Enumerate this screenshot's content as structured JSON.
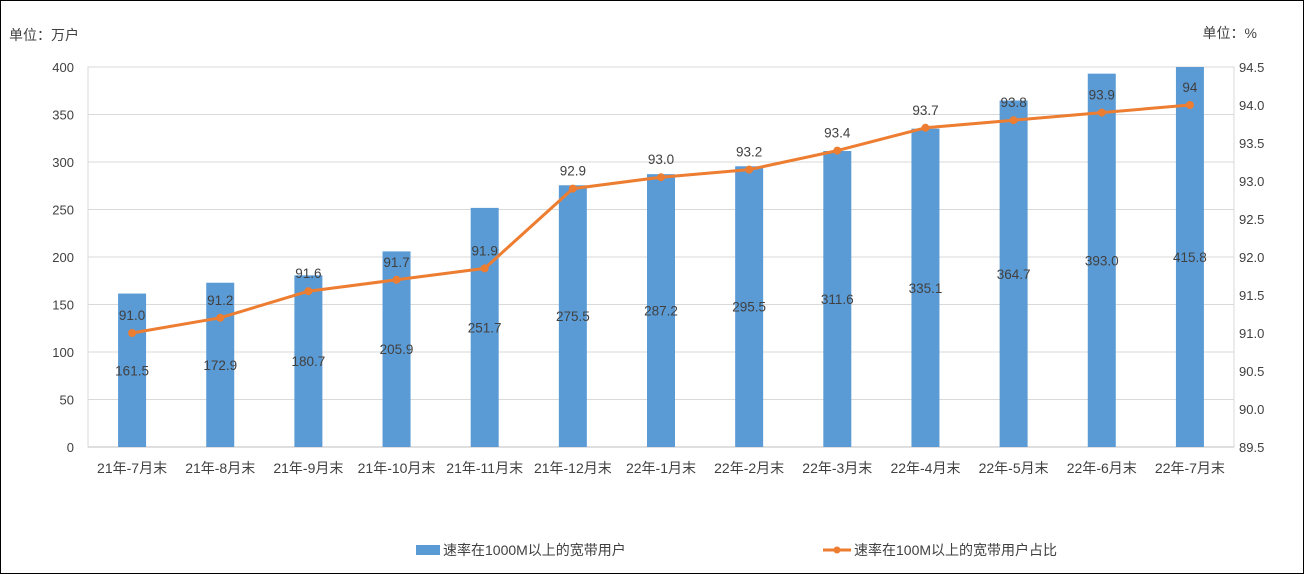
{
  "chart_data": {
    "type": "bar",
    "categories": [
      "21年-7月末",
      "21年-8月末",
      "21年-9月末",
      "21年-10月末",
      "21年-11月末",
      "21年-12月末",
      "22年-1月末",
      "22年-2月末",
      "22年-3月末",
      "22年-4月末",
      "22年-5月末",
      "22年-6月末",
      "22年-7月末"
    ],
    "left_unit": "单位：万户",
    "right_unit": "单位：%",
    "ylim": [
      0,
      400
    ],
    "y_ticks": [
      "0",
      "50",
      "100",
      "150",
      "200",
      "250",
      "300",
      "350",
      "400"
    ],
    "y2lim": [
      89.5,
      94.5
    ],
    "y2_ticks": [
      "89.5",
      "90.0",
      "90.5",
      "91.0",
      "91.5",
      "92.0",
      "92.5",
      "93.0",
      "93.5",
      "94.0",
      "94.5"
    ],
    "grid": true,
    "legend_position": "bottom",
    "series": [
      {
        "name": "速率在1000M以上的宽带用户",
        "type": "bar",
        "axis": "left",
        "color": "#5b9bd5",
        "values": [
          161.5,
          172.9,
          180.7,
          205.9,
          251.7,
          275.5,
          287.2,
          295.5,
          311.6,
          335.1,
          364.7,
          393.0,
          415.8
        ],
        "labels": [
          "161.5",
          "172.9",
          "180.7",
          "205.9",
          "251.7",
          "275.5",
          "287.2",
          "295.5",
          "311.6",
          "335.1",
          "364.7",
          "393.0",
          "415.8"
        ]
      },
      {
        "name": "速率在100M以上的宽带用户占比",
        "type": "line",
        "axis": "right",
        "color": "#ed7d31",
        "values": [
          91.0,
          91.2,
          91.55,
          91.7,
          91.85,
          92.9,
          93.05,
          93.15,
          93.4,
          93.7,
          93.8,
          93.9,
          94.0
        ],
        "labels": [
          "91.0",
          "91.2",
          "91.6",
          "91.7",
          "91.9",
          "92.9",
          "93.0",
          "93.2",
          "93.4",
          "93.7",
          "93.8",
          "93.9",
          "94"
        ]
      }
    ]
  }
}
